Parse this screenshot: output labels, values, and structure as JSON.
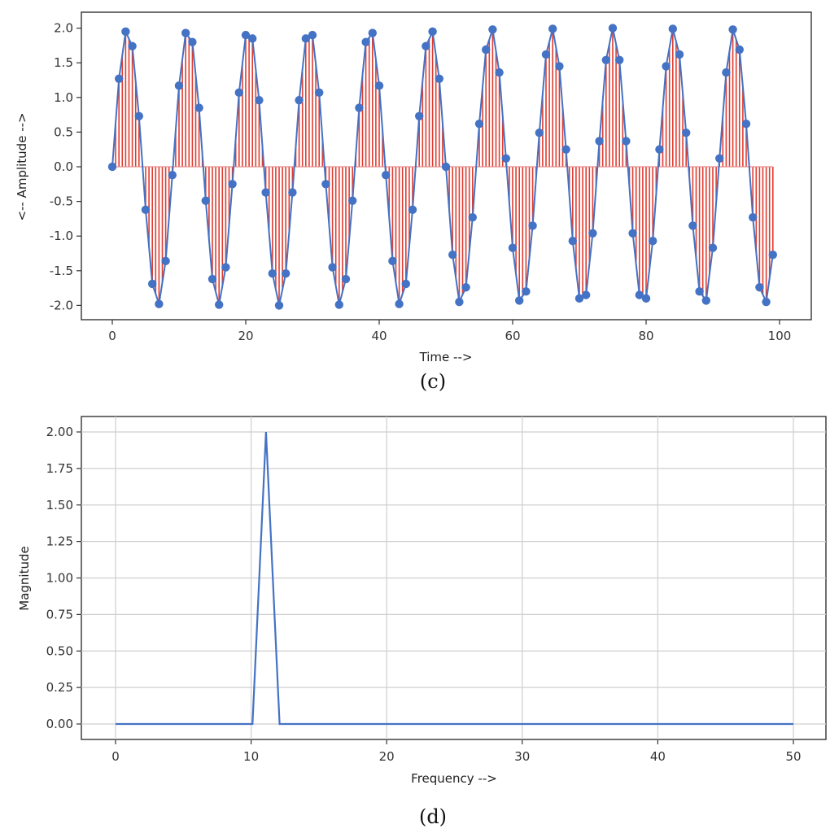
{
  "chart_data": [
    {
      "type": "line",
      "subtype": "stem-and-line",
      "caption": "(c)",
      "title": "",
      "xlabel": "Time -->",
      "ylabel": "<-- Amplitude -->",
      "xlim": [
        0,
        99
      ],
      "ylim": [
        -2.0,
        2.0
      ],
      "xticks": [
        0,
        20,
        40,
        60,
        80,
        100
      ],
      "yticks": [
        -2.0,
        -1.5,
        -1.0,
        -0.5,
        0.0,
        0.5,
        1.0,
        1.5,
        2.0
      ],
      "grid": false,
      "legend": "none",
      "series": [
        {
          "marker": "circle",
          "line_color": "#4472c4",
          "stem_color": "#e03c31",
          "x": [
            0,
            1,
            2,
            3,
            4,
            5,
            6,
            7,
            8,
            9,
            10,
            11,
            12,
            13,
            14,
            15,
            16,
            17,
            18,
            19,
            20,
            21,
            22,
            23,
            24,
            25,
            26,
            27,
            28,
            29,
            30,
            31,
            32,
            33,
            34,
            35,
            36,
            37,
            38,
            39,
            40,
            41,
            42,
            43,
            44,
            45,
            46,
            47,
            48,
            49,
            50,
            51,
            52,
            53,
            54,
            55,
            56,
            57,
            58,
            59,
            60,
            61,
            62,
            63,
            64,
            65,
            66,
            67,
            68,
            69,
            70,
            71,
            72,
            73,
            74,
            75,
            76,
            77,
            78,
            79,
            80,
            81,
            82,
            83,
            84,
            85,
            86,
            87,
            88,
            89,
            90,
            91,
            92,
            93,
            94,
            95,
            96,
            97,
            98,
            99
          ],
          "y": [
            0.0,
            1.27,
            1.95,
            1.74,
            0.73,
            -0.62,
            -1.69,
            -1.98,
            -1.36,
            -0.12,
            1.17,
            1.93,
            1.8,
            0.85,
            -0.49,
            -1.62,
            -1.99,
            -1.45,
            -0.25,
            1.07,
            1.9,
            1.85,
            0.96,
            -0.37,
            -1.54,
            -2.0,
            -1.54,
            -0.37,
            0.96,
            1.85,
            1.9,
            1.07,
            -0.25,
            -1.45,
            -1.99,
            -1.62,
            -0.49,
            0.85,
            1.8,
            1.93,
            1.17,
            -0.12,
            -1.36,
            -1.98,
            -1.69,
            -0.62,
            0.73,
            1.74,
            1.95,
            1.27,
            0.0,
            -1.27,
            -1.95,
            -1.74,
            -0.73,
            0.62,
            1.69,
            1.98,
            1.36,
            0.12,
            -1.17,
            -1.93,
            -1.8,
            -0.85,
            0.49,
            1.62,
            1.99,
            1.45,
            0.25,
            -1.07,
            -1.9,
            -1.85,
            -0.96,
            0.37,
            1.54,
            2.0,
            1.54,
            0.37,
            -0.96,
            -1.85,
            -1.9,
            -1.07,
            0.25,
            1.45,
            1.99,
            1.62,
            0.49,
            -0.85,
            -1.8,
            -1.93,
            -1.17,
            0.12,
            1.36,
            1.98,
            1.69,
            0.62,
            -0.73,
            -1.74,
            -1.95,
            -1.27
          ]
        }
      ]
    },
    {
      "type": "line",
      "caption": "(d)",
      "title": "",
      "xlabel": "Frequency -->",
      "ylabel": "Magnitude",
      "xlim": [
        0,
        50
      ],
      "ylim": [
        0.0,
        2.0
      ],
      "xticks": [
        0,
        10,
        20,
        30,
        40,
        50
      ],
      "yticks": [
        "0.00",
        "0.25",
        "0.50",
        "0.75",
        "1.00",
        "1.25",
        "1.50",
        "1.75",
        "2.00"
      ],
      "grid": true,
      "legend": "none",
      "series": [
        {
          "line_color": "#4472c4",
          "x": [
            0,
            10.1,
            11.1,
            12.1,
            50
          ],
          "y": [
            0.0,
            0.0,
            2.0,
            0.0,
            0.0
          ]
        }
      ]
    }
  ]
}
